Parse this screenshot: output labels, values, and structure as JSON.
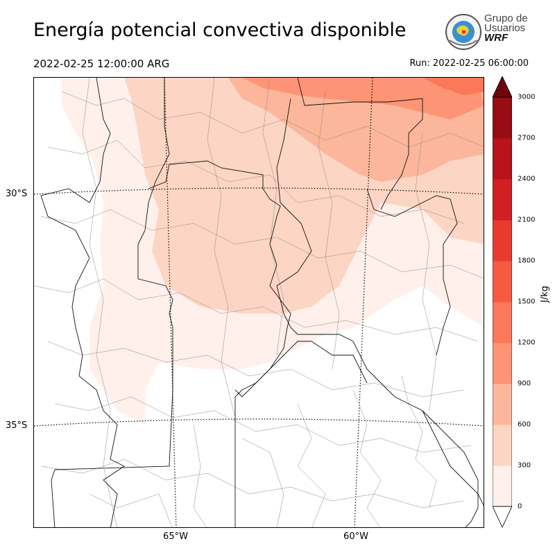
{
  "title": "Energía potencial convectiva disponible",
  "valid_time": "2022-02-25 12:00:00 ARG",
  "run_time": "Run: 2022-02-25 06:00:00",
  "logo": {
    "line1": "Grupo de",
    "line2": "Usuarios",
    "line3": "WRF"
  },
  "lat_labels": [
    "30°S",
    "35°S"
  ],
  "lon_labels": [
    "65°W",
    "60°W"
  ],
  "colorbar": {
    "unit": "J/kg",
    "ticks": [
      "0",
      "300",
      "600",
      "900",
      "1200",
      "1500",
      "1800",
      "2100",
      "2400",
      "2700",
      "3000"
    ],
    "colors": [
      "#fff0eb",
      "#fdd5c4",
      "#fcb69b",
      "#fc9475",
      "#fb7858",
      "#f65a40",
      "#e93a2e",
      "#d11f24",
      "#b81419",
      "#980c13",
      "#6d0510"
    ]
  },
  "colors": {
    "map_fill": "#ffffff",
    "border": "#000000"
  }
}
